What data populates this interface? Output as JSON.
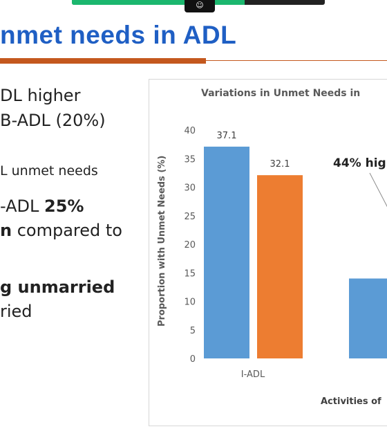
{
  "window": {
    "toolbar_icon": "☺"
  },
  "slide": {
    "title": "nmet needs in ADL",
    "bullets": [
      {
        "segments": [
          {
            "text": "DL higher",
            "bold": false
          }
        ]
      },
      {
        "segments": [
          {
            "text": "B-ADL (20%)",
            "bold": false
          }
        ]
      },
      {
        "segments": [
          {
            "text": "L unmet needs",
            "bold": false
          }
        ]
      },
      {
        "segments": [
          {
            "text": "-ADL ",
            "bold": false
          },
          {
            "text": "25%",
            "bold": true
          }
        ]
      },
      {
        "segments": [
          {
            "text": "n",
            "bold": true
          },
          {
            "text": " compared to",
            "bold": false
          }
        ]
      },
      {
        "segments": [
          {
            "text": "g unmarried",
            "bold": true
          }
        ]
      },
      {
        "segments": [
          {
            "text": "ried",
            "bold": false
          }
        ]
      }
    ]
  },
  "colors": {
    "title": "#1f5fc4",
    "accent_bar": "#c4581e",
    "series_blue": "#5b9bd5",
    "series_orange": "#ed7d31"
  },
  "chart_data": {
    "type": "bar",
    "title": "Variations in Unmet Needs in",
    "ylabel": "Proportion with Unmet Needs (%)",
    "xlabel": "Activities of",
    "ylim": [
      0,
      40
    ],
    "yticks": [
      0,
      5,
      10,
      15,
      20,
      25,
      30,
      35,
      40
    ],
    "grid": false,
    "categories": [
      "I-ADL",
      ""
    ],
    "series": [
      {
        "values": [
          37.1,
          14.0
        ],
        "color": "#5b9bd5",
        "value_labels": [
          "37.1",
          ""
        ]
      },
      {
        "values": [
          32.1,
          null
        ],
        "color": "#ed7d31",
        "value_labels": [
          "32.1",
          ""
        ]
      }
    ],
    "annotations": [
      {
        "text": "44% hig"
      }
    ]
  }
}
